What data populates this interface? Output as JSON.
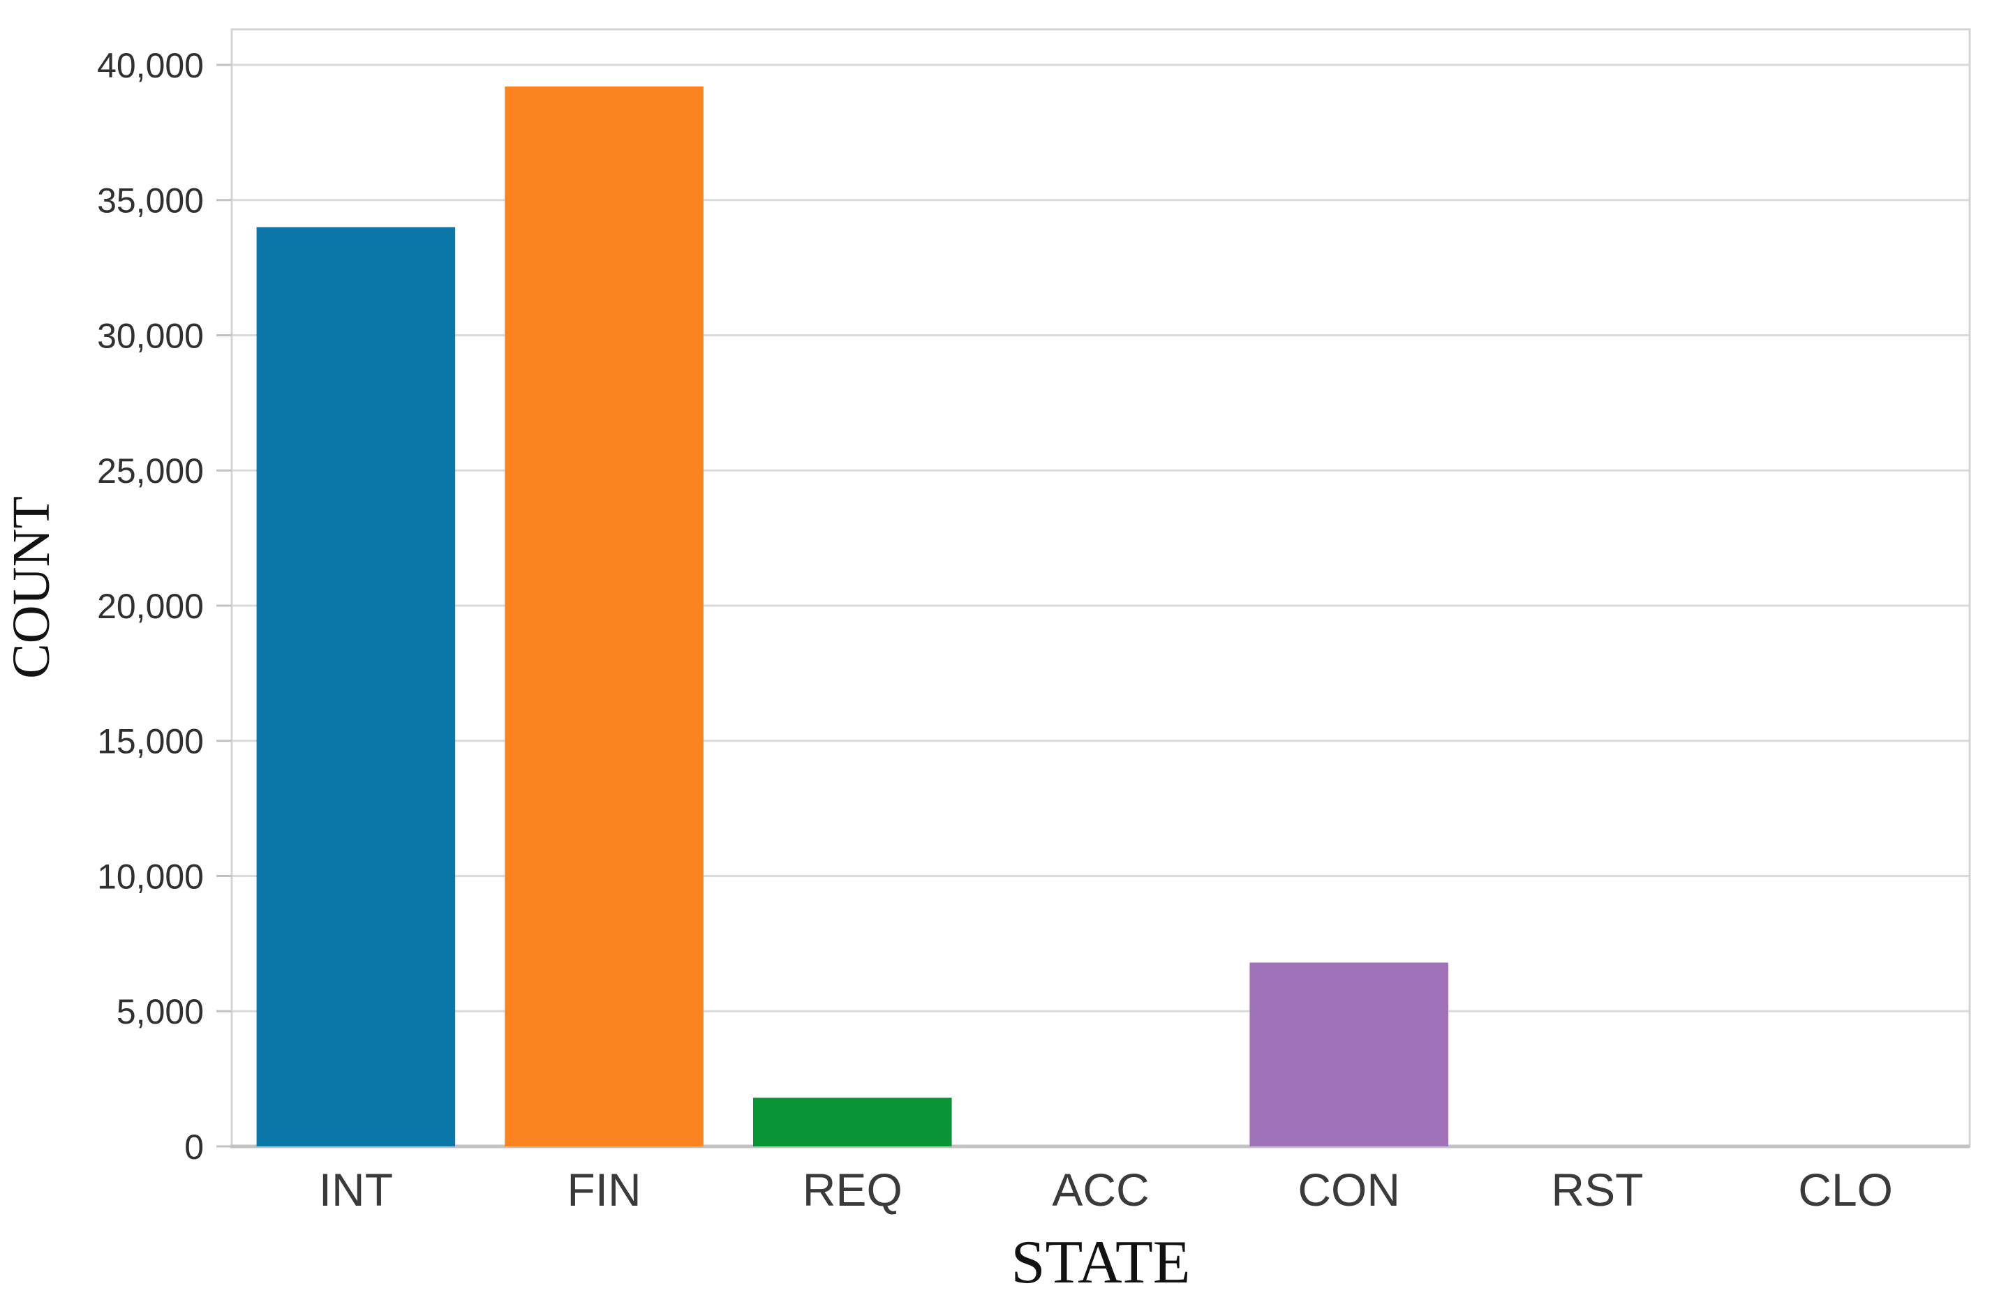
{
  "figure": {
    "background": "#ffffff"
  },
  "chart_data": {
    "type": "bar",
    "title": "",
    "xlabel": "STATE",
    "ylabel": "COUNT",
    "categories": [
      "INT",
      "FIN",
      "REQ",
      "ACC",
      "CON",
      "RST",
      "CLO"
    ],
    "values": [
      34000,
      39200,
      1800,
      0,
      6800,
      0,
      0
    ],
    "bar_colors": [
      "#0b76a8",
      "#fa831f",
      "#089434",
      null,
      "#9f73b9",
      null,
      null
    ],
    "y_tick_values": [
      0,
      5000,
      10000,
      15000,
      20000,
      25000,
      30000,
      35000,
      40000
    ],
    "y_tick_labels": [
      "0",
      "5,000",
      "10,000",
      "15,000",
      "20,000",
      "25,000",
      "30,000",
      "35,000",
      "40,000"
    ],
    "ylim": [
      0,
      41316
    ],
    "grid": true,
    "grid_axis": "y",
    "legend_position": "none",
    "bar_width_fraction": 0.8
  },
  "style_colors": {
    "grid_line": "#dadada",
    "frame_line": "#d4d4d4",
    "baseline": "#c2c2c2",
    "tick_mark": "#c2c2c2"
  }
}
